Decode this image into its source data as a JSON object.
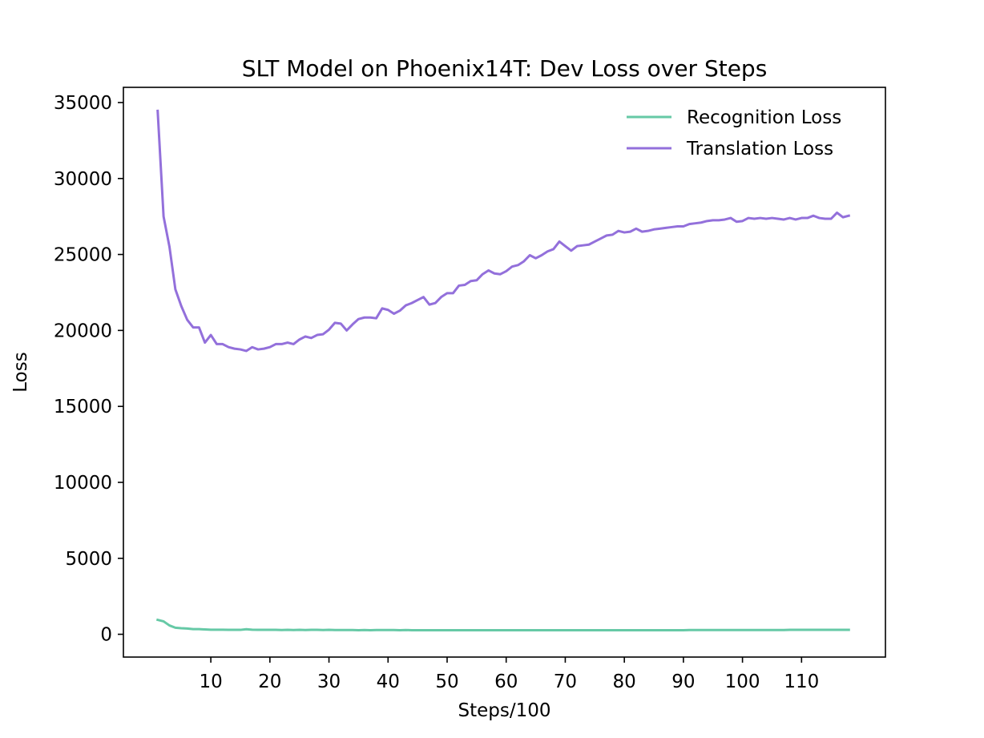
{
  "chart_data": {
    "type": "line",
    "title": "SLT Model on Phoenix14T: Dev Loss over Steps",
    "xlabel": "Steps/100",
    "ylabel": "Loss",
    "xlim": [
      -4.8,
      124.2
    ],
    "ylim": [
      -1500,
      36000
    ],
    "xticks": [
      10,
      20,
      30,
      40,
      50,
      60,
      70,
      80,
      90,
      100,
      110
    ],
    "yticks": [
      0,
      5000,
      10000,
      15000,
      20000,
      25000,
      30000,
      35000
    ],
    "grid": false,
    "legend_position": "top-right",
    "x": [
      1,
      2,
      3,
      4,
      5,
      6,
      7,
      8,
      9,
      10,
      11,
      12,
      13,
      14,
      15,
      16,
      17,
      18,
      19,
      20,
      21,
      22,
      23,
      24,
      25,
      26,
      27,
      28,
      29,
      30,
      31,
      32,
      33,
      34,
      35,
      36,
      37,
      38,
      39,
      40,
      41,
      42,
      43,
      44,
      45,
      46,
      47,
      48,
      49,
      50,
      51,
      52,
      53,
      54,
      55,
      56,
      57,
      58,
      59,
      60,
      61,
      62,
      63,
      64,
      65,
      66,
      67,
      68,
      69,
      70,
      71,
      72,
      73,
      74,
      75,
      76,
      77,
      78,
      79,
      80,
      81,
      82,
      83,
      84,
      85,
      86,
      87,
      88,
      89,
      90,
      91,
      92,
      93,
      94,
      95,
      96,
      97,
      98,
      99,
      100,
      101,
      102,
      103,
      104,
      105,
      106,
      107,
      108,
      109,
      110,
      111,
      112,
      113,
      114,
      115,
      116,
      117,
      118
    ],
    "series": [
      {
        "name": "Recognition Loss",
        "color": "#66c9a6",
        "values": [
          950,
          850,
          580,
          430,
          400,
          380,
          340,
          340,
          320,
          300,
          300,
          300,
          290,
          290,
          290,
          330,
          300,
          290,
          290,
          290,
          290,
          280,
          290,
          280,
          290,
          280,
          290,
          290,
          280,
          290,
          280,
          280,
          280,
          280,
          270,
          280,
          270,
          280,
          280,
          280,
          280,
          270,
          280,
          270,
          270,
          270,
          270,
          270,
          270,
          270,
          270,
          270,
          270,
          270,
          270,
          270,
          270,
          270,
          270,
          270,
          270,
          270,
          270,
          270,
          270,
          270,
          270,
          270,
          270,
          270,
          270,
          270,
          270,
          270,
          270,
          270,
          270,
          270,
          270,
          270,
          270,
          270,
          270,
          270,
          270,
          270,
          270,
          270,
          270,
          270,
          280,
          280,
          280,
          280,
          280,
          280,
          280,
          280,
          280,
          280,
          280,
          280,
          280,
          280,
          280,
          280,
          280,
          290,
          290,
          290,
          290,
          290,
          290,
          290,
          290,
          290,
          290,
          290
        ]
      },
      {
        "name": "Translation Loss",
        "color": "#9370db",
        "values": [
          34450,
          27500,
          25500,
          22700,
          21600,
          20700,
          20200,
          20200,
          19200,
          19700,
          19100,
          19100,
          18900,
          18800,
          18750,
          18650,
          18900,
          18750,
          18800,
          18900,
          19100,
          19100,
          19200,
          19100,
          19400,
          19600,
          19500,
          19700,
          19750,
          20050,
          20500,
          20450,
          20000,
          20400,
          20750,
          20850,
          20850,
          20800,
          21450,
          21350,
          21100,
          21300,
          21650,
          21800,
          22000,
          22200,
          21700,
          21800,
          22200,
          22450,
          22450,
          22950,
          23000,
          23250,
          23300,
          23700,
          23950,
          23750,
          23700,
          23900,
          24200,
          24300,
          24550,
          24950,
          24750,
          24950,
          25200,
          25350,
          25850,
          25550,
          25250,
          25550,
          25600,
          25650,
          25850,
          26050,
          26250,
          26300,
          26550,
          26450,
          26500,
          26700,
          26500,
          26550,
          26650,
          26700,
          26750,
          26800,
          26850,
          26850,
          27000,
          27050,
          27100,
          27200,
          27250,
          27250,
          27300,
          27400,
          27150,
          27200,
          27400,
          27350,
          27400,
          27350,
          27400,
          27350,
          27300,
          27400,
          27300,
          27400,
          27400,
          27550,
          27400,
          27350,
          27350,
          27750,
          27450,
          27550
        ]
      }
    ]
  }
}
